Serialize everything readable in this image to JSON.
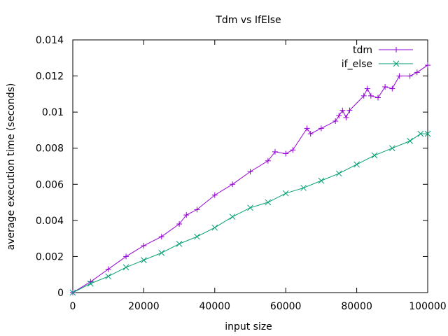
{
  "chart_data": {
    "type": "line",
    "title": "Tdm vs IfElse",
    "xlabel": "input size",
    "ylabel": "average execution time (seconds)",
    "xlim": [
      0,
      100000
    ],
    "ylim": [
      0,
      0.014
    ],
    "xticks": [
      "0",
      "20000",
      "40000",
      "60000",
      "80000",
      "100000"
    ],
    "yticks": [
      "0",
      "0.002",
      "0.004",
      "0.006",
      "0.008",
      "0.01",
      "0.012",
      "0.014"
    ],
    "grid": false,
    "legend": "top-right",
    "series": [
      {
        "name": "tdm",
        "color": "#9400d3",
        "marker": "plus",
        "x": [
          0,
          5000,
          10000,
          15000,
          20000,
          25000,
          30000,
          32000,
          35000,
          40000,
          45000,
          50000,
          55000,
          57000,
          60000,
          62000,
          66000,
          67000,
          70000,
          74000,
          75000,
          76000,
          77000,
          78000,
          82000,
          83000,
          84000,
          86000,
          88000,
          90000,
          92000,
          95000,
          97000,
          100000
        ],
        "y": [
          0,
          0.0006,
          0.0013,
          0.002,
          0.0026,
          0.0031,
          0.0038,
          0.0043,
          0.0046,
          0.0054,
          0.006,
          0.0067,
          0.0073,
          0.0078,
          0.0077,
          0.0079,
          0.0091,
          0.0088,
          0.0091,
          0.0095,
          0.0098,
          0.0101,
          0.0097,
          0.0101,
          0.0109,
          0.0113,
          0.0109,
          0.0108,
          0.0114,
          0.0113,
          0.012,
          0.012,
          0.0122,
          0.0126
        ]
      },
      {
        "name": "if_else",
        "color": "#009e73",
        "marker": "cross",
        "x": [
          0,
          5000,
          10000,
          15000,
          20000,
          25000,
          30000,
          35000,
          40000,
          45000,
          50000,
          55000,
          60000,
          65000,
          70000,
          75000,
          80000,
          85000,
          90000,
          95000,
          98000,
          100000
        ],
        "y": [
          0,
          0.0005,
          0.0009,
          0.0014,
          0.0018,
          0.0022,
          0.0027,
          0.0031,
          0.0036,
          0.0042,
          0.0047,
          0.005,
          0.0055,
          0.0058,
          0.0062,
          0.0066,
          0.0071,
          0.0076,
          0.008,
          0.0084,
          0.0088,
          0.0088
        ]
      }
    ]
  }
}
